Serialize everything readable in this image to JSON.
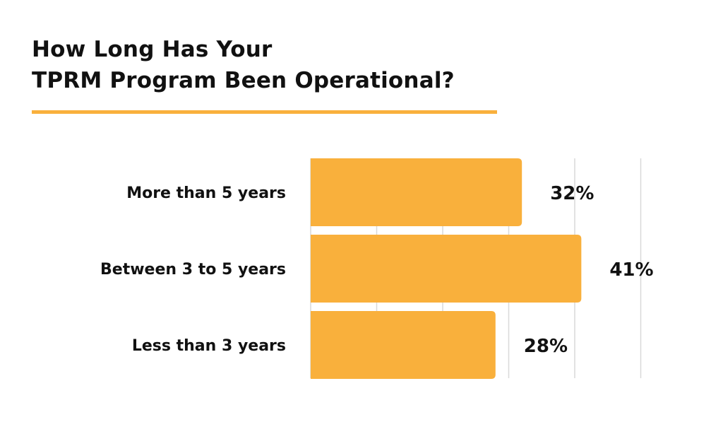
{
  "title": {
    "line1": "How Long Has Your",
    "line2": "TPRM Program Been Operational?"
  },
  "colors": {
    "bar": "#f9b03c",
    "accent": "#f9b03c",
    "grid": "#d9d9d9",
    "text": "#111111"
  },
  "chart_data": {
    "type": "bar",
    "orientation": "horizontal",
    "categories": [
      "More than 5 years",
      "Between 3 to 5 years",
      "Less than 3 years"
    ],
    "values": [
      32,
      41,
      28
    ],
    "value_labels": [
      "32%",
      "41%",
      "28%"
    ],
    "unit": "%",
    "xlim": [
      0,
      50
    ],
    "grid": true
  }
}
